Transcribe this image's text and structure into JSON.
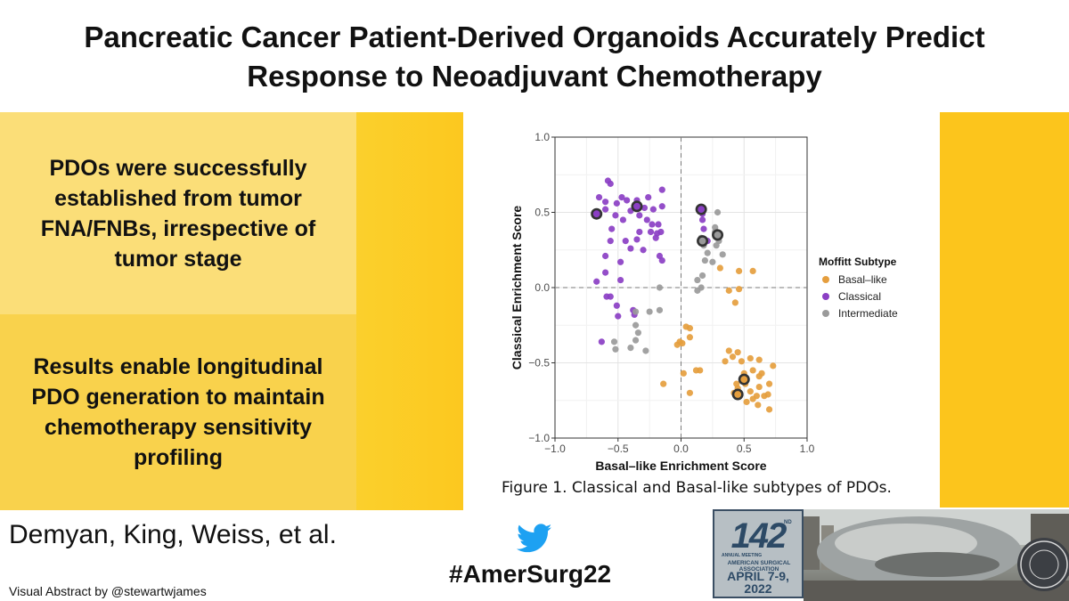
{
  "title": {
    "line1": "Pancreatic Cancer Patient-Derived Organoids Accurately Predict",
    "line2": "Response to Neoadjuvant Chemotherapy"
  },
  "box1": {
    "line1": "PDOs were successfully",
    "line2": "established from tumor",
    "line3": "FNA/FNBs, irrespective of",
    "line4": "tumor stage"
  },
  "box2": {
    "line1": "Results enable longitudinal",
    "line2": "PDO generation to maintain",
    "line3": "chemotherapy sensitivity",
    "line4": "profiling"
  },
  "caption": "Figure 1. Classical and Basal-like subtypes of PDOs.",
  "authors": "Demyan, King, Weiss, et al.",
  "credit": "Visual Abstract by @stewartwjames",
  "hashtag": "#AmerSurg22",
  "logo": {
    "number": "142",
    "nd": "ND",
    "annual": "ANNUAL MEETING",
    "org": "AMERICAN SURGICAL ASSOCIATION",
    "date_line1": "APRIL 7-9,",
    "date_line2": "2022"
  },
  "colors": {
    "basal": "#E59E3E",
    "classical": "#8B3FC4",
    "intermediate": "#9A9A9A",
    "yellow": "#FCC51C"
  },
  "chart_data": {
    "type": "scatter",
    "xlabel": "Basal–like Enrichment Score",
    "ylabel": "Classical Enrichment Score",
    "xlim": [
      -1.0,
      1.0
    ],
    "ylim": [
      -1.0,
      1.0
    ],
    "xticks": [
      -1.0,
      -0.5,
      0.0,
      0.5,
      1.0
    ],
    "yticks": [
      -1.0,
      -0.5,
      0.0,
      0.5,
      1.0
    ],
    "xtick_labels": [
      "−1.0",
      "−0.5",
      "0.0",
      "0.5",
      "1.0"
    ],
    "ytick_labels": [
      "−1.0",
      "−0.5",
      "0.0",
      "0.5",
      "1.0"
    ],
    "grid": true,
    "legend_title": "Moffitt Subtype",
    "legend_position": "right",
    "series": [
      {
        "name": "Basal–like",
        "color": "#E59E3E",
        "points": [
          [
            0.31,
            0.13
          ],
          [
            0.46,
            0.11
          ],
          [
            0.57,
            0.11
          ],
          [
            0.46,
            -0.01
          ],
          [
            0.38,
            -0.02
          ],
          [
            0.43,
            -0.1
          ],
          [
            0.04,
            -0.26
          ],
          [
            0.07,
            -0.27
          ],
          [
            0.07,
            -0.33
          ],
          [
            -0.01,
            -0.36
          ],
          [
            0.01,
            -0.37
          ],
          [
            -0.03,
            -0.38
          ],
          [
            -0.14,
            -0.64
          ],
          [
            0.02,
            -0.57
          ],
          [
            0.07,
            -0.7
          ],
          [
            0.15,
            -0.55
          ],
          [
            0.12,
            -0.55
          ],
          [
            0.38,
            -0.42
          ],
          [
            0.41,
            -0.46
          ],
          [
            0.45,
            -0.43
          ],
          [
            0.35,
            -0.49
          ],
          [
            0.48,
            -0.49
          ],
          [
            0.55,
            -0.47
          ],
          [
            0.62,
            -0.48
          ],
          [
            0.57,
            -0.55
          ],
          [
            0.64,
            -0.57
          ],
          [
            0.73,
            -0.52
          ],
          [
            0.62,
            -0.59
          ],
          [
            0.5,
            -0.57
          ],
          [
            0.51,
            -0.64
          ],
          [
            0.44,
            -0.64
          ],
          [
            0.45,
            -0.67
          ],
          [
            0.42,
            -0.7
          ],
          [
            0.55,
            -0.69
          ],
          [
            0.62,
            -0.66
          ],
          [
            0.6,
            -0.72
          ],
          [
            0.66,
            -0.72
          ],
          [
            0.7,
            -0.64
          ],
          [
            0.69,
            -0.71
          ],
          [
            0.57,
            -0.74
          ],
          [
            0.52,
            -0.76
          ],
          [
            0.61,
            -0.78
          ],
          [
            0.7,
            -0.81
          ]
        ]
      },
      {
        "name": "Classical",
        "color": "#8B3FC4",
        "points": [
          [
            -0.58,
            0.71
          ],
          [
            -0.56,
            0.69
          ],
          [
            -0.65,
            0.6
          ],
          [
            -0.6,
            0.57
          ],
          [
            -0.51,
            0.56
          ],
          [
            -0.47,
            0.6
          ],
          [
            -0.43,
            0.58
          ],
          [
            -0.35,
            0.58
          ],
          [
            -0.26,
            0.6
          ],
          [
            -0.15,
            0.65
          ],
          [
            -0.29,
            0.53
          ],
          [
            -0.22,
            0.52
          ],
          [
            -0.15,
            0.54
          ],
          [
            -0.6,
            0.52
          ],
          [
            -0.52,
            0.48
          ],
          [
            -0.55,
            0.39
          ],
          [
            -0.46,
            0.45
          ],
          [
            -0.4,
            0.51
          ],
          [
            -0.33,
            0.48
          ],
          [
            -0.27,
            0.45
          ],
          [
            -0.23,
            0.42
          ],
          [
            -0.18,
            0.42
          ],
          [
            -0.16,
            0.37
          ],
          [
            -0.19,
            0.36
          ],
          [
            -0.33,
            0.37
          ],
          [
            -0.24,
            0.37
          ],
          [
            -0.2,
            0.33
          ],
          [
            -0.35,
            0.32
          ],
          [
            -0.44,
            0.31
          ],
          [
            -0.56,
            0.31
          ],
          [
            -0.4,
            0.26
          ],
          [
            -0.3,
            0.25
          ],
          [
            -0.48,
            0.17
          ],
          [
            -0.17,
            0.21
          ],
          [
            -0.15,
            0.18
          ],
          [
            -0.6,
            0.21
          ],
          [
            -0.6,
            0.1
          ],
          [
            -0.48,
            0.05
          ],
          [
            -0.67,
            0.04
          ],
          [
            -0.59,
            -0.06
          ],
          [
            -0.56,
            -0.06
          ],
          [
            -0.51,
            -0.12
          ],
          [
            -0.38,
            -0.15
          ],
          [
            -0.5,
            -0.19
          ],
          [
            -0.37,
            -0.18
          ],
          [
            -0.63,
            -0.36
          ],
          [
            0.17,
            0.45
          ],
          [
            0.18,
            0.39
          ],
          [
            0.21,
            0.31
          ],
          [
            0.17,
            0.49
          ]
        ]
      },
      {
        "name": "Intermediate",
        "color": "#9A9A9A",
        "points": [
          [
            0.29,
            0.5
          ],
          [
            0.27,
            0.4
          ],
          [
            0.27,
            0.37
          ],
          [
            0.16,
            0.33
          ],
          [
            0.18,
            0.28
          ],
          [
            0.3,
            0.31
          ],
          [
            0.28,
            0.28
          ],
          [
            0.33,
            0.22
          ],
          [
            0.21,
            0.23
          ],
          [
            0.25,
            0.17
          ],
          [
            0.19,
            0.18
          ],
          [
            0.17,
            0.08
          ],
          [
            0.13,
            0.05
          ],
          [
            0.16,
            0.0
          ],
          [
            0.13,
            -0.02
          ],
          [
            -0.36,
            -0.16
          ],
          [
            -0.25,
            -0.16
          ],
          [
            -0.17,
            -0.15
          ],
          [
            -0.36,
            -0.25
          ],
          [
            -0.34,
            -0.3
          ],
          [
            -0.36,
            -0.35
          ],
          [
            -0.53,
            -0.36
          ],
          [
            -0.52,
            -0.41
          ],
          [
            -0.4,
            -0.4
          ],
          [
            -0.28,
            -0.42
          ],
          [
            -0.17,
            0.0
          ]
        ]
      },
      {
        "name": "Highlighted",
        "color": "#333333",
        "points": [
          {
            "x": -0.67,
            "y": 0.49,
            "subtype": "Classical"
          },
          {
            "x": -0.35,
            "y": 0.54,
            "subtype": "Classical"
          },
          {
            "x": 0.16,
            "y": 0.52,
            "subtype": "Classical"
          },
          {
            "x": 0.17,
            "y": 0.31,
            "subtype": "Intermediate"
          },
          {
            "x": 0.29,
            "y": 0.35,
            "subtype": "Intermediate"
          },
          {
            "x": 0.5,
            "y": -0.61,
            "subtype": "Basal–like"
          },
          {
            "x": 0.45,
            "y": -0.71,
            "subtype": "Basal–like"
          }
        ]
      }
    ]
  }
}
